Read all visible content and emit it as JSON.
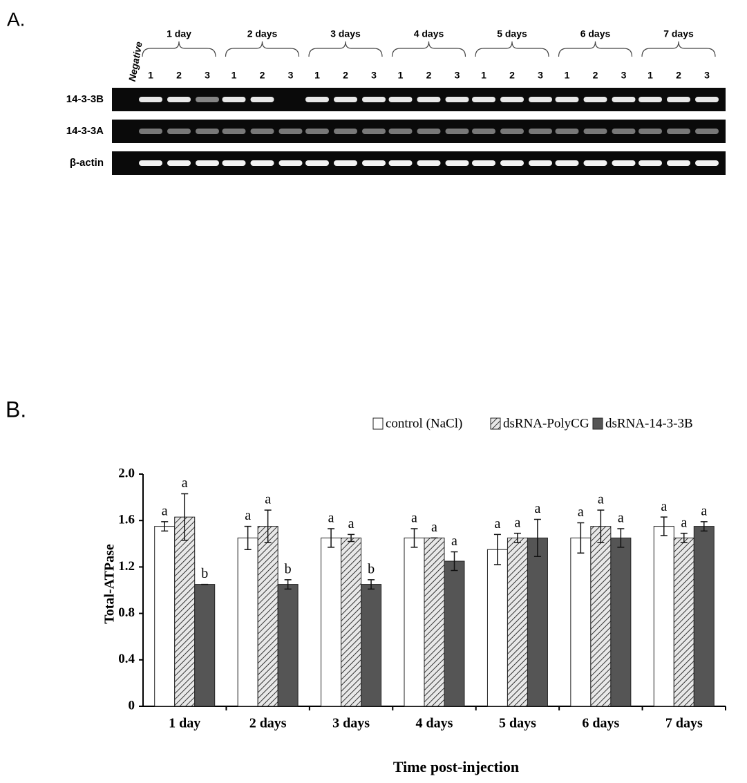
{
  "panel_a": {
    "label": "A.",
    "negative": "Negative",
    "groups": [
      {
        "label": "1 day",
        "lanes": [
          "1",
          "2",
          "3"
        ]
      },
      {
        "label": "2 days",
        "lanes": [
          "1",
          "2",
          "3"
        ]
      },
      {
        "label": "3 days",
        "lanes": [
          "1",
          "2",
          "3"
        ]
      },
      {
        "label": "4 days",
        "lanes": [
          "1",
          "2",
          "3"
        ]
      },
      {
        "label": "5 days",
        "lanes": [
          "1",
          "2",
          "3"
        ]
      },
      {
        "label": "6 days",
        "lanes": [
          "1",
          "2",
          "3"
        ]
      },
      {
        "label": "7 days",
        "lanes": [
          "1",
          "2",
          "3"
        ]
      }
    ],
    "rows": [
      "14-3-3B",
      "14-3-3A",
      "β-actin"
    ]
  },
  "chart_data": {
    "type": "bar",
    "panel_label": "B.",
    "y_label": "Total-ATPase",
    "x_label": "Time post-injection",
    "categories": [
      "1 day",
      "2 days",
      "3 days",
      "4 days",
      "5 days",
      "6 days",
      "7 days"
    ],
    "series": [
      {
        "name": "control (NaCl)",
        "color": "#ffffff",
        "values": [
          1.55,
          1.45,
          1.45,
          1.45,
          1.35,
          1.45,
          1.55
        ],
        "errors": [
          0.04,
          0.1,
          0.08,
          0.08,
          0.13,
          0.13,
          0.08
        ],
        "letters": [
          "a",
          "a",
          "a",
          "a",
          "a",
          "a",
          "a"
        ]
      },
      {
        "name": "dsRNA-PolyCG",
        "color": "#d0d0d0",
        "pattern": "hatch",
        "values": [
          1.63,
          1.55,
          1.45,
          1.45,
          1.45,
          1.55,
          1.45
        ],
        "errors": [
          0.2,
          0.14,
          0.03,
          0,
          0.04,
          0.14,
          0.04
        ],
        "letters": [
          "a",
          "a",
          "a",
          "a",
          "a",
          "a",
          "a"
        ]
      },
      {
        "name": "dsRNA-14-3-3B",
        "color": "#555555",
        "values": [
          1.05,
          1.05,
          1.05,
          1.25,
          1.45,
          1.45,
          1.55
        ],
        "errors": [
          0,
          0.04,
          0.04,
          0.08,
          0.16,
          0.08,
          0.04
        ],
        "letters": [
          "b",
          "b",
          "b",
          "a",
          "a",
          "a",
          "a"
        ]
      }
    ],
    "ylim": [
      0,
      2
    ],
    "yticks": [
      0,
      0.4,
      0.8,
      1.2,
      1.6,
      {
        "value": 2,
        "label": "2.0"
      }
    ]
  }
}
